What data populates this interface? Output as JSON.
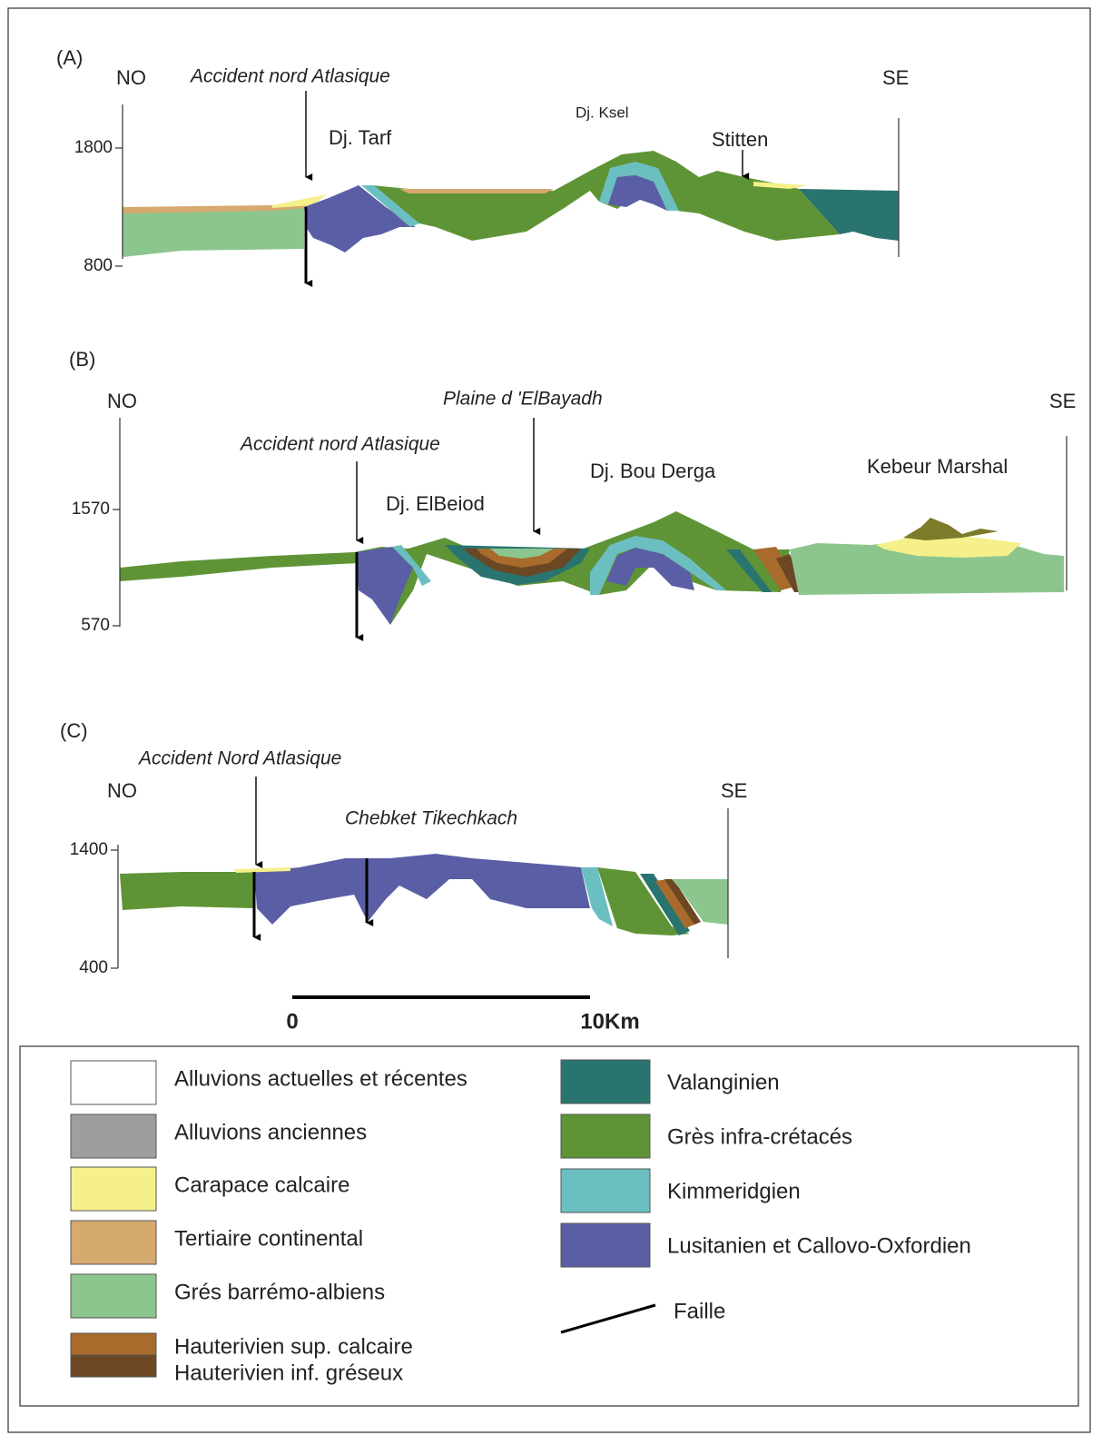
{
  "sections": [
    {
      "label": "(A)",
      "left": "NO",
      "right": "SE",
      "ticks": [
        "1800",
        "800"
      ],
      "annotations": [
        "Accident nord Atlasique",
        "Dj. Tarf",
        "Dj. Ksel",
        "Stitten"
      ]
    },
    {
      "label": "(B)",
      "left": "NO",
      "right": "SE",
      "ticks": [
        "1570",
        "570"
      ],
      "annotations": [
        "Accident nord Atlasique",
        "Plaine d 'ElBayadh",
        "Dj. ElBeiod",
        "Dj. Bou Derga",
        "Kebeur Marshal"
      ]
    },
    {
      "label": "(C)",
      "left": "NO",
      "right": "SE",
      "ticks": [
        "1400",
        "400"
      ],
      "annotations": [
        "Accident Nord Atlasique",
        "Chebket Tikechkach"
      ]
    }
  ],
  "scale": {
    "start": "0",
    "end": "10Km"
  },
  "legend": {
    "left": [
      {
        "label": "Alluvions actuelles et récentes",
        "color": "#ffffff"
      },
      {
        "label": "Alluvions anciennes",
        "color": "#9e9e9e"
      },
      {
        "label": "Carapace calcaire",
        "color": "#f5f08a"
      },
      {
        "label": "Tertiaire continental",
        "color": "#d6a96f"
      },
      {
        "label": "Grés barrémo-albiens",
        "color": "#8cc68e"
      },
      {
        "label": "Hauterivien sup. calcaire",
        "color": "#a86b2c"
      },
      {
        "label": "Hauterivien inf. gréseux",
        "color": "#6b4724"
      }
    ],
    "right": [
      {
        "label": "Valanginien",
        "color": "#2a7470"
      },
      {
        "label": "Grès infra-crétacés",
        "color": "#5f9436"
      },
      {
        "label": "Kimmeridgien",
        "color": "#6cbfc0"
      },
      {
        "label": "Lusitanien et Callovo-Oxfordien",
        "color": "#5a5ea5"
      }
    ],
    "fault": "Faille"
  }
}
